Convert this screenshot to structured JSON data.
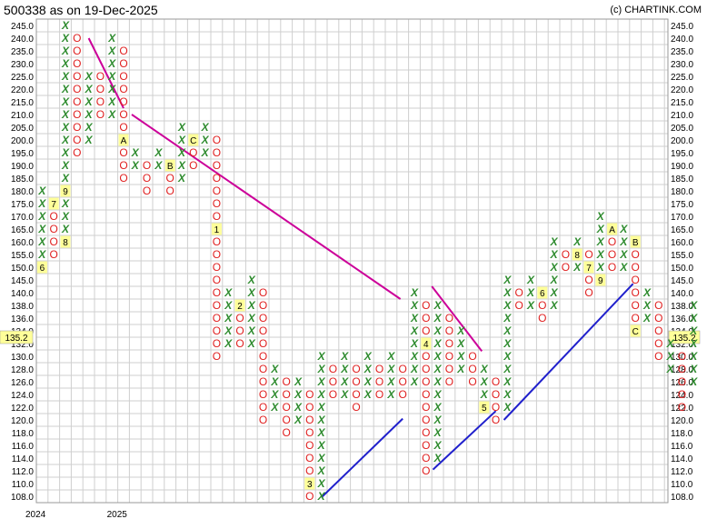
{
  "header": {
    "title": "500338 as on 19-Dec-2025",
    "credit": "(c) CHARTINK.COM"
  },
  "chart_data": {
    "type": "point-and-figure",
    "y_labels": [
      "108.0",
      "110.0",
      "112.0",
      "114.0",
      "116.0",
      "118.0",
      "120.0",
      "122.0",
      "124.0",
      "126.0",
      "128.0",
      "130.0",
      "132.0",
      "134.0",
      "136.0",
      "138.0",
      "140.0",
      "145.0",
      "150.0",
      "155.0",
      "160.0",
      "165.0",
      "170.0",
      "175.0",
      "180.0",
      "185.0",
      "190.0",
      "195.0",
      "200.0",
      "205.0",
      "210.0",
      "215.0",
      "220.0",
      "225.0",
      "230.0",
      "235.0",
      "240.0",
      "245.0"
    ],
    "last_price": "135.2",
    "x_labels": [
      {
        "col": 0,
        "text": "2024"
      },
      {
        "col": 7,
        "text": "2025"
      }
    ],
    "columns": [
      {
        "type": "X",
        "from": 18,
        "to": 24,
        "marks": {
          "18": "6"
        }
      },
      {
        "type": "O",
        "from": 19,
        "to": 23,
        "marks": {
          "23": "7"
        }
      },
      {
        "type": "X",
        "from": 20,
        "to": 37,
        "marks": {
          "20": "8",
          "24": "9"
        }
      },
      {
        "type": "O",
        "from": 27,
        "to": 36
      },
      {
        "type": "X",
        "from": 28,
        "to": 33
      },
      {
        "type": "O",
        "from": 30,
        "to": 33
      },
      {
        "type": "X",
        "from": 30,
        "to": 36
      },
      {
        "type": "O",
        "from": 25,
        "to": 35,
        "marks": {
          "28": "A"
        }
      },
      {
        "type": "X",
        "from": 26,
        "to": 27
      },
      {
        "type": "O",
        "from": 24,
        "to": 26
      },
      {
        "type": "X",
        "from": 26,
        "to": 27
      },
      {
        "type": "O",
        "from": 24,
        "to": 26,
        "marks": {
          "26": "B"
        }
      },
      {
        "type": "X",
        "from": 25,
        "to": 29
      },
      {
        "type": "O",
        "from": 26,
        "to": 28,
        "marks": {
          "28": "C"
        }
      },
      {
        "type": "X",
        "from": 27,
        "to": 29
      },
      {
        "type": "O",
        "from": 11,
        "to": 28,
        "marks": {
          "21": "1"
        }
      },
      {
        "type": "X",
        "from": 12,
        "to": 16
      },
      {
        "type": "O",
        "from": 12,
        "to": 15,
        "marks": {
          "15": "2"
        }
      },
      {
        "type": "X",
        "from": 12,
        "to": 17
      },
      {
        "type": "O",
        "from": 6,
        "to": 16
      },
      {
        "type": "X",
        "from": 7,
        "to": 10
      },
      {
        "type": "O",
        "from": 5,
        "to": 9
      },
      {
        "type": "X",
        "from": 6,
        "to": 9
      },
      {
        "type": "O",
        "from": 0,
        "to": 8,
        "marks": {
          "1": "3"
        }
      },
      {
        "type": "X",
        "from": 0,
        "to": 11
      },
      {
        "type": "O",
        "from": 8,
        "to": 10
      },
      {
        "type": "X",
        "from": 8,
        "to": 11
      },
      {
        "type": "O",
        "from": 7,
        "to": 10
      },
      {
        "type": "X",
        "from": 8,
        "to": 11
      },
      {
        "type": "O",
        "from": 8,
        "to": 10
      },
      {
        "type": "X",
        "from": 8,
        "to": 11
      },
      {
        "type": "O",
        "from": 8,
        "to": 10
      },
      {
        "type": "X",
        "from": 9,
        "to": 16
      },
      {
        "type": "O",
        "from": 2,
        "to": 15,
        "marks": {
          "12": "4"
        }
      },
      {
        "type": "X",
        "from": 3,
        "to": 15
      },
      {
        "type": "O",
        "from": 9,
        "to": 14
      },
      {
        "type": "X",
        "from": 10,
        "to": 13
      },
      {
        "type": "O",
        "from": 9,
        "to": 11
      },
      {
        "type": "X",
        "from": 7,
        "to": 10,
        "marks": {
          "7": "5"
        }
      },
      {
        "type": "O",
        "from": 6,
        "to": 9
      },
      {
        "type": "X",
        "from": 7,
        "to": 17
      },
      {
        "type": "O",
        "from": 15,
        "to": 16
      },
      {
        "type": "X",
        "from": 15,
        "to": 17
      },
      {
        "type": "O",
        "from": 14,
        "to": 16,
        "marks": {
          "16": "6"
        }
      },
      {
        "type": "X",
        "from": 15,
        "to": 20
      },
      {
        "type": "O",
        "from": 18,
        "to": 19
      },
      {
        "type": "X",
        "from": 18,
        "to": 20,
        "marks": {
          "19": "8"
        }
      },
      {
        "type": "O",
        "from": 16,
        "to": 19,
        "marks": {
          "18": "7"
        }
      },
      {
        "type": "X",
        "from": 17,
        "to": 22,
        "marks": {
          "17": "9"
        }
      },
      {
        "type": "O",
        "from": 18,
        "to": 21,
        "marks": {
          "21": "A"
        }
      },
      {
        "type": "X",
        "from": 18,
        "to": 21
      },
      {
        "type": "O",
        "from": 13,
        "to": 20,
        "marks": {
          "20": "B",
          "13": "C"
        }
      },
      {
        "type": "X",
        "from": 14,
        "to": 16
      },
      {
        "type": "O",
        "from": 11,
        "to": 15
      },
      {
        "type": "X",
        "from": 10,
        "to": 12
      },
      {
        "type": "O",
        "from": 7,
        "to": 11
      },
      {
        "type": "X",
        "from": 9,
        "to": 15
      }
    ],
    "trendlines": [
      {
        "kind": "resistance",
        "color": "#cc0099",
        "from": [
          4,
          36
        ],
        "to": [
          7,
          30.5
        ]
      },
      {
        "kind": "resistance",
        "color": "#cc0099",
        "from": [
          7.7,
          30
        ],
        "to": [
          30.8,
          15.5
        ]
      },
      {
        "kind": "resistance",
        "color": "#cc0099",
        "from": [
          33.5,
          16.5
        ],
        "to": [
          37.8,
          11.4
        ]
      },
      {
        "kind": "support",
        "color": "#2020cc",
        "from": [
          24,
          -0.1
        ],
        "to": [
          31,
          6.1
        ]
      },
      {
        "kind": "support",
        "color": "#2020cc",
        "from": [
          33.6,
          2.1
        ],
        "to": [
          39,
          6.7
        ]
      },
      {
        "kind": "support",
        "color": "#2020cc",
        "from": [
          39.7,
          6
        ],
        "to": [
          50.8,
          16.7
        ]
      }
    ],
    "colors": {
      "x": "#2e8b2e",
      "o": "#e02020",
      "grid": "#cfcfcf",
      "label_bg": "#ffff99",
      "price_bg": "#ffff99"
    }
  }
}
